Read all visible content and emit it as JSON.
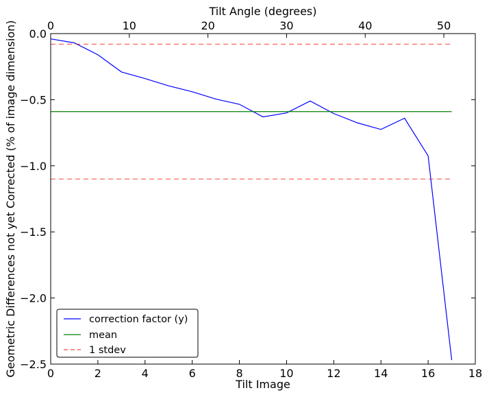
{
  "chart_data": {
    "type": "line",
    "xlabel": "Tilt Image",
    "ylabel": "Geometric Differences not yet Corrected (% of image dimension)",
    "top_xlabel": "Tilt Angle (degrees)",
    "xlim": [
      0,
      18
    ],
    "ylim": [
      -2.5,
      0.0
    ],
    "top_xlim": [
      0,
      54
    ],
    "x_ticks": [
      0,
      2,
      4,
      6,
      8,
      10,
      12,
      14,
      16,
      18
    ],
    "x_tick_labels": [
      "0",
      "2",
      "4",
      "6",
      "8",
      "10",
      "12",
      "14",
      "16",
      "18"
    ],
    "y_ticks": [
      0.0,
      -0.5,
      -1.0,
      -1.5,
      -2.0,
      -2.5
    ],
    "y_tick_labels": [
      "0.0",
      "−0.5",
      "−1.0",
      "−1.5",
      "−2.0",
      "−2.5"
    ],
    "top_ticks": [
      0,
      10,
      20,
      30,
      40,
      50
    ],
    "top_tick_labels": [
      "0",
      "10",
      "20",
      "30",
      "40",
      "50"
    ],
    "grid": false,
    "legend_position": "lower-left",
    "series": [
      {
        "name": "correction factor (y)",
        "style": "solid",
        "color": "#0000ff",
        "x": [
          0,
          1,
          2,
          3,
          4,
          5,
          6,
          7,
          8,
          9,
          10,
          11,
          12,
          13,
          14,
          15,
          16,
          17
        ],
        "values": [
          -0.04,
          -0.07,
          -0.16,
          -0.29,
          -0.34,
          -0.395,
          -0.44,
          -0.495,
          -0.535,
          -0.63,
          -0.6,
          -0.51,
          -0.605,
          -0.675,
          -0.725,
          -0.64,
          -0.925,
          -2.47
        ]
      },
      {
        "name": "mean",
        "style": "solid",
        "color": "#008000",
        "x": [
          0,
          17
        ],
        "values": [
          -0.59,
          -0.59
        ]
      },
      {
        "name": "1 stdev",
        "style": "dashed",
        "color": "#ff0000",
        "x": [
          0,
          17
        ],
        "values": [
          -0.08,
          -0.08
        ]
      },
      {
        "name": "",
        "style": "dashed",
        "color": "#ff0000",
        "x": [
          0,
          17
        ],
        "values": [
          -1.1,
          -1.1
        ]
      }
    ],
    "legend": [
      {
        "label": "correction factor (y)",
        "color": "#0000ff",
        "style": "solid"
      },
      {
        "label": "mean",
        "color": "#008000",
        "style": "solid"
      },
      {
        "label": "1 stdev",
        "color": "#ff0000",
        "style": "dashed"
      }
    ]
  }
}
